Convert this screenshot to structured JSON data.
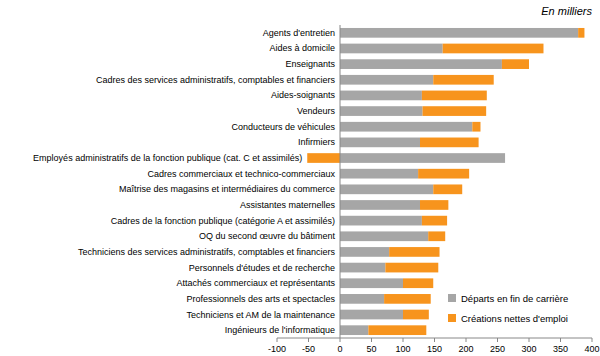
{
  "chart_data": {
    "type": "bar",
    "orientation": "horizontal",
    "stacked": true,
    "subtitle": "En milliers",
    "categories": [
      "Agents d'entretien",
      "Aides à domicile",
      "Enseignants",
      "Cadres des services administratifs, comptables et financiers",
      "Aides-soignants",
      "Vendeurs",
      "Conducteurs de véhicules",
      "Infirmiers",
      "Employés administratifs de la fonction publique (cat. C et assimilés)",
      "Cadres commerciaux et technico-commerciaux",
      "Maîtrise des magasins et intermédiaires du commerce",
      "Assistantes maternelles",
      "Cadres de la fonction publique (catégorie A et assimilés)",
      "OQ du second œuvre du bâtiment",
      "Techniciens des services administratifs, comptables et financiers",
      "Personnels d'études et de recherche",
      "Attachés commerciaux et représentants",
      "Professionnels des arts et spectacles",
      "Techniciens et AM de la maintenance",
      "Ingénieurs de l'informatique"
    ],
    "series": [
      {
        "name": "Départs en fin de carrière",
        "color": "#a6a6a6",
        "values": [
          378,
          163,
          257,
          148,
          130,
          131,
          210,
          127,
          262,
          124,
          148,
          127,
          130,
          140,
          78,
          72,
          100,
          70,
          100,
          45
        ]
      },
      {
        "name": "Créations nettes d'emploi",
        "color": "#f7941d",
        "values": [
          10,
          160,
          43,
          96,
          103,
          101,
          13,
          93,
          -52,
          81,
          46,
          45,
          40,
          27,
          80,
          84,
          48,
          74,
          41,
          92
        ]
      }
    ],
    "xlim": [
      -100,
      400
    ],
    "xticks": [
      -100,
      -50,
      0,
      50,
      100,
      150,
      200,
      250,
      300,
      350,
      400
    ],
    "grid": false,
    "legend": "lower right"
  }
}
